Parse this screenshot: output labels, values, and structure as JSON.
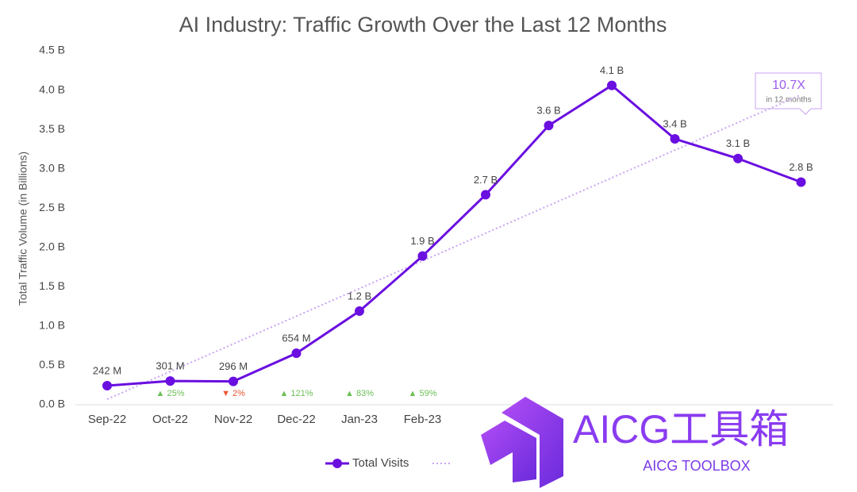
{
  "chart_data": {
    "type": "line",
    "title": "AI Industry: Traffic Growth Over the Last 12 Months",
    "y_label": "Total Traffic Volume (in Billions)",
    "categories": [
      "Sep-22",
      "Oct-22",
      "Nov-22",
      "Dec-22",
      "Jan-23",
      "Feb-23",
      null,
      null,
      null,
      null,
      null,
      null
    ],
    "series": [
      {
        "name": "Total Visits",
        "color": "#6a0fe0",
        "values": [
          0.242,
          0.301,
          0.296,
          0.654,
          1.19,
          1.89,
          2.67,
          3.55,
          4.06,
          3.38,
          3.13,
          2.83
        ],
        "value_labels": [
          "242 M",
          "301 M",
          "296 M",
          "654 M",
          "1.2 B",
          "1.9 B",
          "2.7 B",
          "3.6 B",
          "4.1 B",
          "3.4 B",
          "3.1 B",
          "2.8 B"
        ]
      }
    ],
    "trend": {
      "color": "#c9a3f5",
      "values": [
        0.07,
        3.94
      ]
    },
    "ylim": [
      0,
      4.5
    ],
    "yticks": [
      {
        "value": 0,
        "label": "0.0 B"
      },
      {
        "value": 0.5,
        "label": "0.5 B"
      },
      {
        "value": 1,
        "label": "1.0 B"
      },
      {
        "value": 1.5,
        "label": "1.5 B"
      },
      {
        "value": 2,
        "label": "2.0 B"
      },
      {
        "value": 2.5,
        "label": "2.5 B"
      },
      {
        "value": 3,
        "label": "3.0 B"
      },
      {
        "value": 3.5,
        "label": "3.5 B"
      },
      {
        "value": 4,
        "label": "4.0 B"
      },
      {
        "value": 4.5,
        "label": "4.5 B"
      }
    ],
    "change_labels": [
      {
        "text": "▲ 25%",
        "color": "#6cbf55"
      },
      {
        "text": "▼ 2%",
        "color": "#ee5533"
      },
      {
        "text": "▲ 121%",
        "color": "#6cbf55"
      },
      {
        "text": "▲ 83%",
        "color": "#6cbf55"
      },
      {
        "text": "▲ 59%",
        "color": "#6cbf55"
      }
    ],
    "callout": {
      "title": "10.7X",
      "subtitle": "in 12 months"
    }
  },
  "watermark": {
    "title": "AICG工具箱",
    "subtitle": "AICG TOOLBOX"
  }
}
